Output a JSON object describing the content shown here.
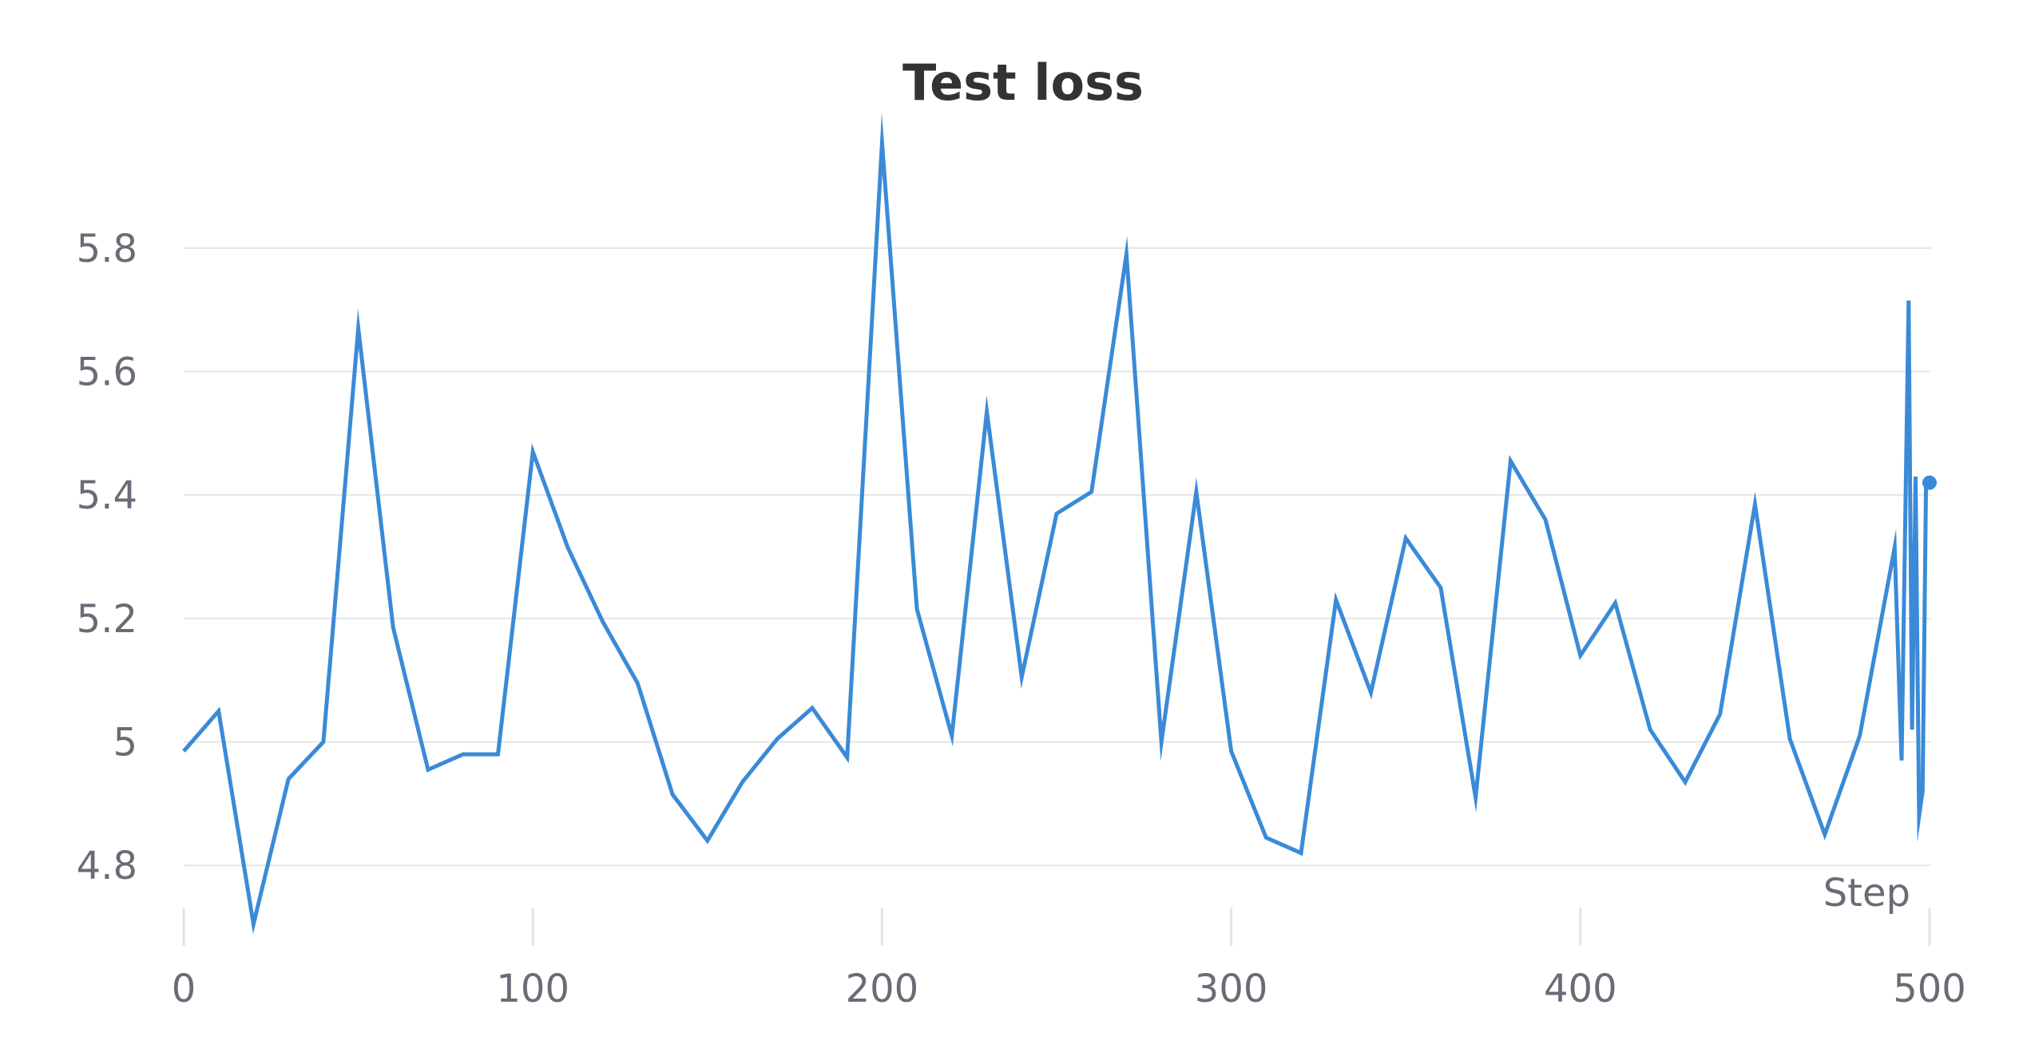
{
  "chart_data": {
    "type": "line",
    "title": "Test loss",
    "xlabel": "Step",
    "ylabel": "",
    "xlim": [
      0,
      500
    ],
    "ylim": [
      4.7,
      5.98
    ],
    "x_ticks": [
      0,
      100,
      200,
      300,
      400,
      500
    ],
    "y_ticks": [
      4.8,
      5,
      5.2,
      5.4,
      5.6,
      5.8
    ],
    "x_tick_labels": [
      "0",
      "100",
      "200",
      "300",
      "400",
      "500"
    ],
    "y_tick_labels": [
      "4.8",
      "5",
      "5.2",
      "5.4",
      "5.6",
      "5.8"
    ],
    "grid": true,
    "legend": "none",
    "line_color": "#3a8ad8",
    "grid_color": "#e6e6e6",
    "series": [
      {
        "x": [
          0,
          10,
          20,
          30,
          40,
          50,
          60,
          70,
          80,
          90,
          100,
          110,
          120,
          130,
          140,
          150,
          160,
          170,
          180,
          190,
          200,
          210,
          220,
          230,
          240,
          250,
          260,
          270,
          280,
          290,
          300,
          310,
          320,
          330,
          340,
          350,
          360,
          370,
          380,
          390,
          400,
          410,
          420,
          430,
          440,
          450,
          460,
          470,
          480,
          490,
          492,
          494,
          495,
          496,
          497,
          498,
          499,
          500
        ],
        "y": [
          4.985,
          5.05,
          4.705,
          4.94,
          5.0,
          5.67,
          5.185,
          4.955,
          4.98,
          4.98,
          5.47,
          5.315,
          5.195,
          5.095,
          4.915,
          4.84,
          4.935,
          5.005,
          5.055,
          4.975,
          5.97,
          5.215,
          5.01,
          5.535,
          5.105,
          5.37,
          5.405,
          5.79,
          5.0,
          5.405,
          4.985,
          4.845,
          4.82,
          5.23,
          5.08,
          5.33,
          5.25,
          4.91,
          5.455,
          5.36,
          5.14,
          5.225,
          5.02,
          4.935,
          5.045,
          5.385,
          5.005,
          4.85,
          5.01,
          5.315,
          4.97,
          5.715,
          5.02,
          5.43,
          4.88,
          4.92,
          5.42,
          5.42
        ]
      }
    ]
  }
}
